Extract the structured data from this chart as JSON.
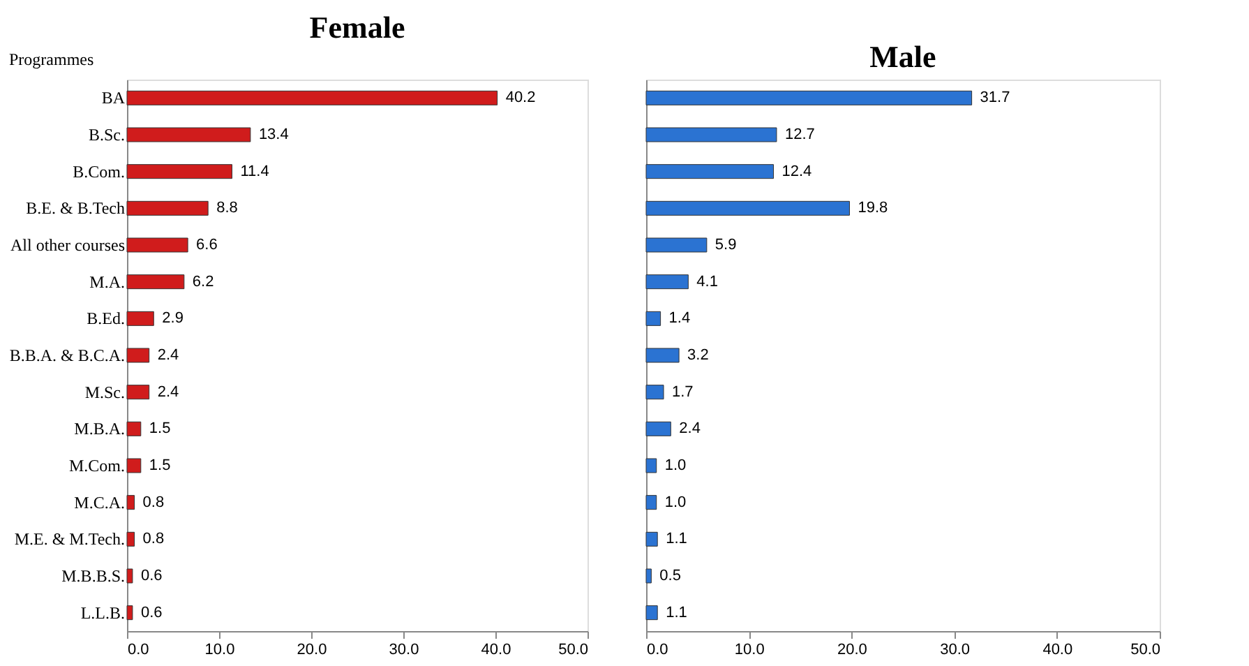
{
  "chart_data": [
    {
      "type": "bar",
      "orientation": "horizontal",
      "title": "Female",
      "ylabel": "Programmes",
      "categories": [
        "BA",
        "B.Sc.",
        "B.Com.",
        "B.E. & B.Tech",
        "All other courses",
        "M.A.",
        "B.Ed.",
        "B.B.A. & B.C.A.",
        "M.Sc.",
        "M.B.A.",
        "M.Com.",
        "M.C.A.",
        "M.E. & M.Tech.",
        "M.B.B.S.",
        "L.L.B."
      ],
      "series": [
        {
          "color": "#d01c1c",
          "values": [
            40.2,
            13.4,
            11.4,
            8.8,
            6.6,
            6.2,
            2.9,
            2.4,
            2.4,
            1.5,
            1.5,
            0.8,
            0.8,
            0.6,
            0.6
          ],
          "value_labels": [
            "40.2",
            "13.4",
            "11.4",
            "8.8",
            "6.6",
            "6.2",
            "2.9",
            "2.4",
            "2.4",
            "1.5",
            "1.5",
            "0.8",
            "0.8",
            "0.6",
            "0.6"
          ]
        }
      ],
      "xlim": [
        0,
        50
      ],
      "xticks": [
        {
          "value": 0,
          "label": "0.0"
        },
        {
          "value": 10,
          "label": "10.0"
        },
        {
          "value": 20,
          "label": "20.0"
        },
        {
          "value": 30,
          "label": "30.0"
        },
        {
          "value": 40,
          "label": "40.0"
        },
        {
          "value": 50,
          "label": "50.0"
        }
      ],
      "grid": false
    },
    {
      "type": "bar",
      "orientation": "horizontal",
      "title": "Male",
      "categories": [
        null,
        null,
        null,
        null,
        null,
        null,
        null,
        null,
        null,
        null,
        null,
        null,
        null,
        null,
        null
      ],
      "series": [
        {
          "color": "#2b73d2",
          "values": [
            31.7,
            12.7,
            12.4,
            19.8,
            5.9,
            4.1,
            1.4,
            3.2,
            1.7,
            2.4,
            1.0,
            1.0,
            1.1,
            0.5,
            1.1
          ],
          "value_labels": [
            "31.7",
            "12.7",
            "12.4",
            "19.8",
            "5.9",
            "4.1",
            "1.4",
            "3.2",
            "1.7",
            "2.4",
            "1.0",
            "1.0",
            "1.1",
            "0.5",
            "1.1"
          ]
        }
      ],
      "xlim": [
        0,
        50
      ],
      "xticks": [
        {
          "value": 0,
          "label": "0.0"
        },
        {
          "value": 10,
          "label": "10.0"
        },
        {
          "value": 20,
          "label": "20.0"
        },
        {
          "value": 30,
          "label": "30.0"
        },
        {
          "value": 40,
          "label": "40.0"
        },
        {
          "value": 50,
          "label": "50.0"
        }
      ],
      "grid": false,
      "tick_labels": "x"
    }
  ]
}
